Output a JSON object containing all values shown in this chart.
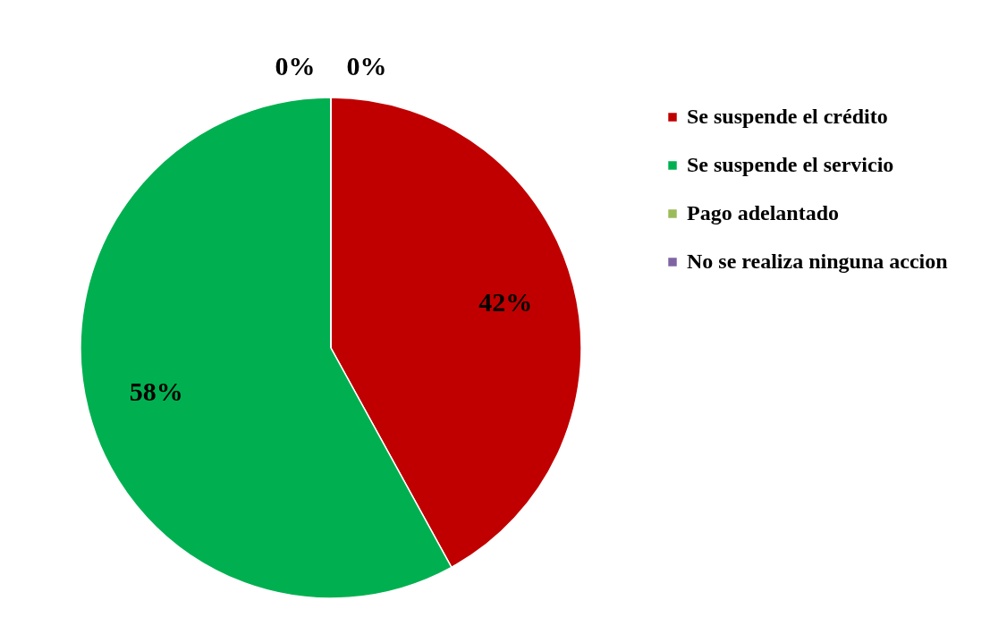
{
  "chart_data": {
    "type": "pie",
    "categories": [
      "Se suspende el crédito",
      "Se suspende el servicio",
      "Pago adelantado",
      "No se realiza ninguna accion"
    ],
    "values": [
      42,
      58,
      0,
      0
    ],
    "colors": [
      "#c00000",
      "#00b050",
      "#9bbb59",
      "#8064a2"
    ],
    "value_labels": [
      "42%",
      "58%",
      "0%",
      "0%"
    ],
    "legend": "right"
  }
}
